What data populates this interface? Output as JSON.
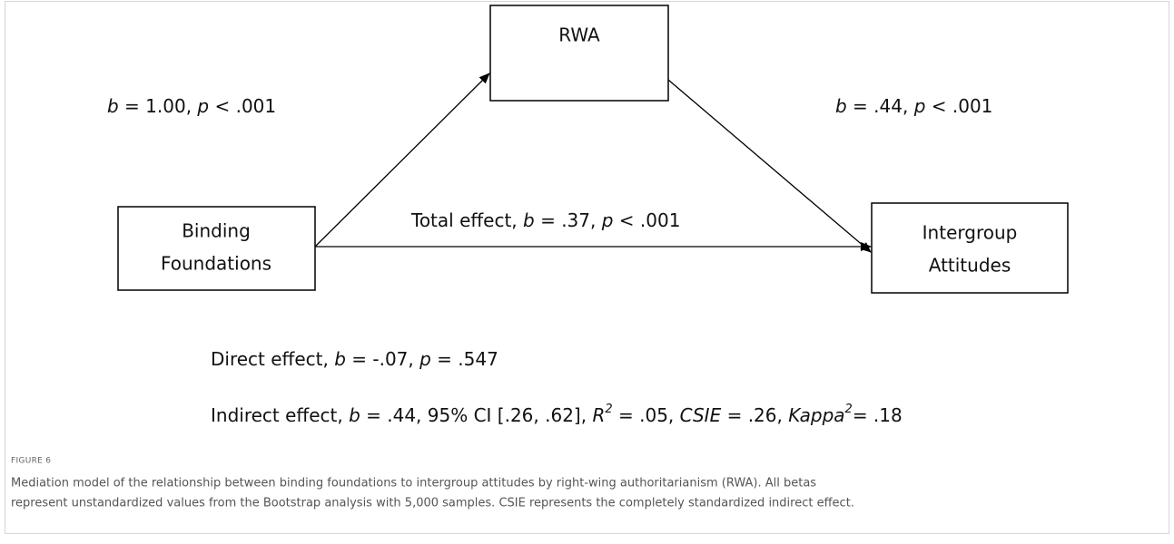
{
  "nodes": [
    {
      "lines": [
        "RWA"
      ]
    },
    {
      "lines": [
        "Binding",
        "Foundations"
      ]
    },
    {
      "lines": [
        "Intergroup",
        "Attitudes"
      ]
    }
  ],
  "paths": {
    "a": [
      {
        "text": "b",
        "style": "italic"
      },
      {
        "text": " = 1.00, "
      },
      {
        "text": "p",
        "style": "italic"
      },
      {
        "text": " < .001"
      }
    ],
    "b": [
      {
        "text": "b",
        "style": "italic"
      },
      {
        "text": " = .44, "
      },
      {
        "text": "p",
        "style": "italic"
      },
      {
        "text": " < .001"
      }
    ],
    "total": [
      {
        "text": "Total effect, "
      },
      {
        "text": "b",
        "style": "italic"
      },
      {
        "text": " = .37, "
      },
      {
        "text": "p",
        "style": "italic"
      },
      {
        "text": " < .001"
      }
    ]
  },
  "effects": {
    "direct": [
      {
        "text": "Direct effect, "
      },
      {
        "text": "b",
        "style": "italic"
      },
      {
        "text": " = -.07, "
      },
      {
        "text": "p",
        "style": "italic"
      },
      {
        "text": " = .547"
      }
    ],
    "indirect": [
      {
        "text": "Indirect effect, "
      },
      {
        "text": "b",
        "style": "italic"
      },
      {
        "text": " = .44, 95% CI [.26, .62], "
      },
      {
        "text": "R",
        "style": "italic"
      },
      {
        "text": "2",
        "style": "italic-sup"
      },
      {
        "text": " = .05, "
      },
      {
        "text": "CSIE",
        "style": "italic"
      },
      {
        "text": " = .26, "
      },
      {
        "text": "Kappa",
        "style": "italic"
      },
      {
        "text": "2",
        "style": "italic-sup"
      },
      {
        "text": "= .18"
      }
    ]
  },
  "caption": {
    "label": "FIGURE 6",
    "lines": [
      "Mediation model of the relationship between binding foundations to intergroup attitudes by right-wing authoritarianism (RWA). All betas",
      "represent unstandardized values from the Bootstrap analysis with 5,000 samples. CSIE represents the completely standardized indirect effect."
    ]
  }
}
